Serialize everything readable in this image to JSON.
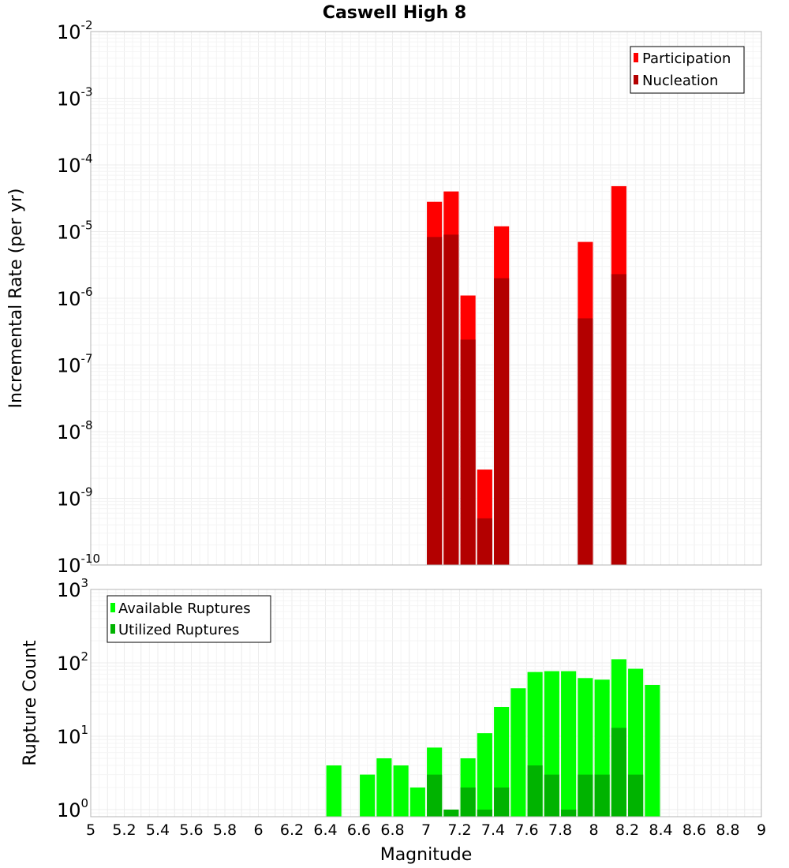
{
  "title": "Caswell High 8",
  "chart_data": [
    {
      "type": "bar",
      "panel": "top",
      "title": "Caswell High 8",
      "xlabel": "Magnitude",
      "ylabel": "Incremental Rate (per yr)",
      "yscale": "log",
      "ylim": [
        1e-10,
        0.01
      ],
      "y_ticks": [
        {
          "base": "10",
          "exp": "-10"
        },
        {
          "base": "10",
          "exp": "-9"
        },
        {
          "base": "10",
          "exp": "-8"
        },
        {
          "base": "10",
          "exp": "-7"
        },
        {
          "base": "10",
          "exp": "-6"
        },
        {
          "base": "10",
          "exp": "-5"
        },
        {
          "base": "10",
          "exp": "-4"
        },
        {
          "base": "10",
          "exp": "-3"
        },
        {
          "base": "10",
          "exp": "-2"
        }
      ],
      "legend_position": "top-right",
      "series": [
        {
          "name": "Participation",
          "color": "#ff0000",
          "points": [
            {
              "x": 7.05,
              "y": 2.8e-05
            },
            {
              "x": 7.15,
              "y": 4e-05
            },
            {
              "x": 7.25,
              "y": 1.1e-06
            },
            {
              "x": 7.35,
              "y": 2.7e-09
            },
            {
              "x": 7.45,
              "y": 1.2e-05
            },
            {
              "x": 7.95,
              "y": 7e-06
            },
            {
              "x": 8.15,
              "y": 4.8e-05
            }
          ]
        },
        {
          "name": "Nucleation",
          "color": "#b30000",
          "points": [
            {
              "x": 7.05,
              "y": 8.3e-06
            },
            {
              "x": 7.15,
              "y": 9e-06
            },
            {
              "x": 7.25,
              "y": 2.4e-07
            },
            {
              "x": 7.35,
              "y": 5e-10
            },
            {
              "x": 7.45,
              "y": 2e-06
            },
            {
              "x": 7.95,
              "y": 5e-07
            },
            {
              "x": 8.15,
              "y": 2.3e-06
            }
          ]
        }
      ]
    },
    {
      "type": "bar",
      "panel": "bottom",
      "xlabel": "Magnitude",
      "ylabel": "Rupture Count",
      "yscale": "log",
      "ylim": [
        0.8,
        1000
      ],
      "xlim": [
        5,
        9
      ],
      "bar_width": 0.09,
      "y_ticks": [
        {
          "base": "10",
          "exp": "0"
        },
        {
          "base": "10",
          "exp": "1"
        },
        {
          "base": "10",
          "exp": "2"
        },
        {
          "base": "10",
          "exp": "3"
        }
      ],
      "x_ticks": [
        "5",
        "5.2",
        "5.4",
        "5.6",
        "5.8",
        "6",
        "6.2",
        "6.4",
        "6.6",
        "6.8",
        "7",
        "7.2",
        "7.4",
        "7.6",
        "7.8",
        "8",
        "8.2",
        "8.4",
        "8.6",
        "8.8",
        "9"
      ],
      "legend_position": "top-left",
      "series": [
        {
          "name": "Available Ruptures",
          "color": "#00ff00",
          "points": [
            {
              "x": 6.45,
              "y": 4
            },
            {
              "x": 6.65,
              "y": 3
            },
            {
              "x": 6.75,
              "y": 5
            },
            {
              "x": 6.85,
              "y": 4
            },
            {
              "x": 6.95,
              "y": 2
            },
            {
              "x": 7.05,
              "y": 7
            },
            {
              "x": 7.25,
              "y": 5
            },
            {
              "x": 7.35,
              "y": 11
            },
            {
              "x": 7.45,
              "y": 25
            },
            {
              "x": 7.55,
              "y": 45
            },
            {
              "x": 7.65,
              "y": 75
            },
            {
              "x": 7.75,
              "y": 77
            },
            {
              "x": 7.85,
              "y": 77
            },
            {
              "x": 7.95,
              "y": 62
            },
            {
              "x": 8.05,
              "y": 59
            },
            {
              "x": 8.15,
              "y": 112
            },
            {
              "x": 8.25,
              "y": 83
            },
            {
              "x": 8.35,
              "y": 50
            }
          ]
        },
        {
          "name": "Utilized Ruptures",
          "color": "#00b300",
          "points": [
            {
              "x": 7.05,
              "y": 3
            },
            {
              "x": 7.15,
              "y": 1
            },
            {
              "x": 7.25,
              "y": 2
            },
            {
              "x": 7.35,
              "y": 1
            },
            {
              "x": 7.45,
              "y": 2
            },
            {
              "x": 7.65,
              "y": 4
            },
            {
              "x": 7.75,
              "y": 3
            },
            {
              "x": 7.85,
              "y": 1
            },
            {
              "x": 7.95,
              "y": 3
            },
            {
              "x": 8.05,
              "y": 3
            },
            {
              "x": 8.15,
              "y": 13
            },
            {
              "x": 8.25,
              "y": 3
            }
          ]
        }
      ]
    }
  ]
}
